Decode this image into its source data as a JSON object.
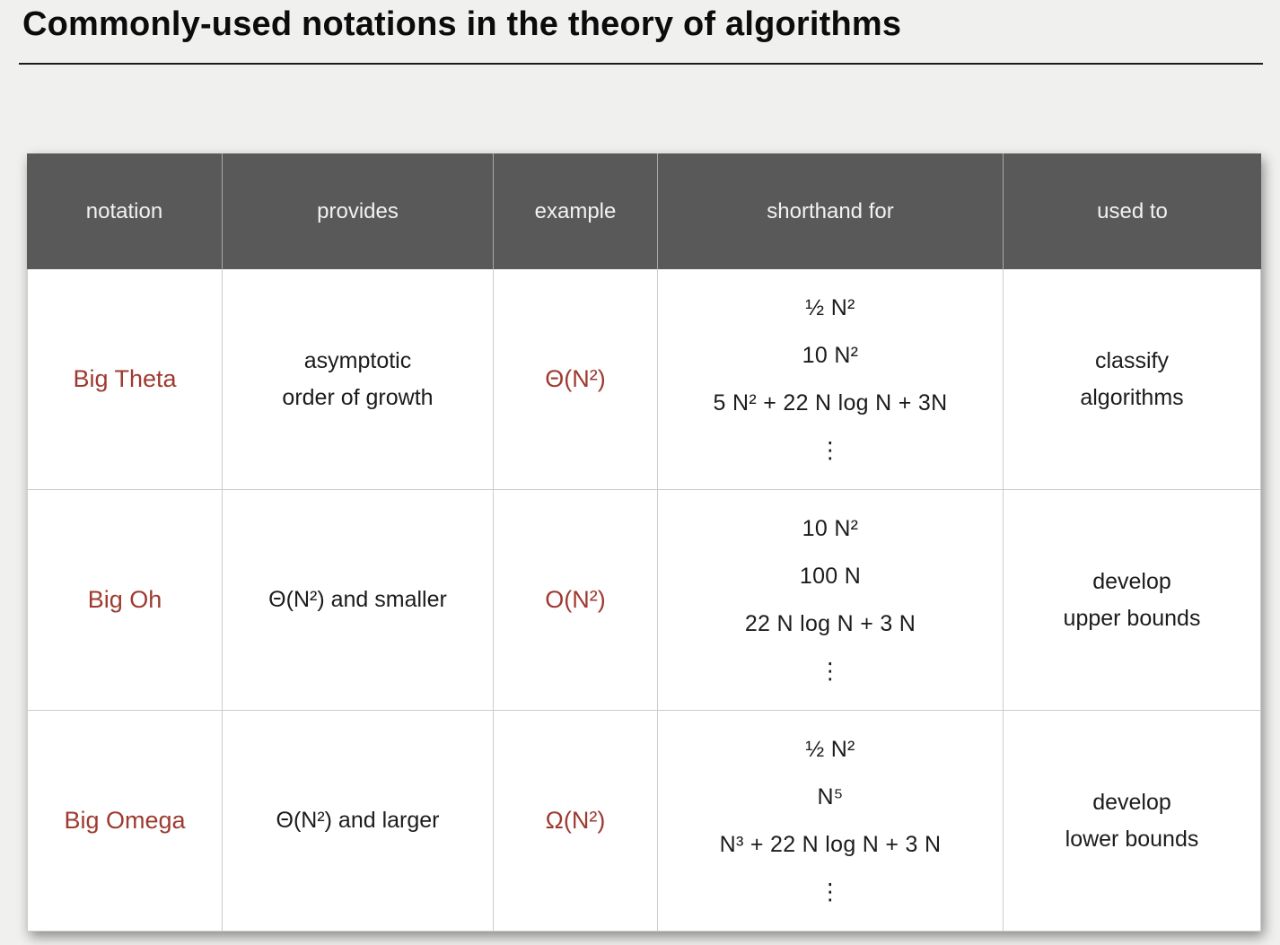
{
  "page": {
    "title": "Commonly-used notations in the theory of algorithms"
  },
  "colors": {
    "background": "#f0f0ee",
    "header_bg": "#595959",
    "header_text": "#f2f2f2",
    "accent_red": "#9e3a30",
    "body_text": "#1c1c1c",
    "cell_border": "#cccccc"
  },
  "table": {
    "headers": [
      "notation",
      "provides",
      "example",
      "shorthand for",
      "used to"
    ],
    "rows": [
      {
        "notation": "Big Theta",
        "provides": [
          "asymptotic",
          "order of growth"
        ],
        "example": "Θ(N²)",
        "shorthand": [
          "½ N²",
          "10 N²",
          "5 N² + 22 N log N + 3N",
          "⋮"
        ],
        "used_to": [
          "classify",
          "algorithms"
        ]
      },
      {
        "notation": "Big Oh",
        "provides": [
          "Θ(N²) and smaller"
        ],
        "example": "O(N²)",
        "shorthand": [
          "10 N²",
          "100 N",
          "22 N log N + 3 N",
          "⋮"
        ],
        "used_to": [
          "develop",
          "upper bounds"
        ]
      },
      {
        "notation": "Big Omega",
        "provides": [
          "Θ(N²) and larger"
        ],
        "example": "Ω(N²)",
        "shorthand": [
          "½ N²",
          "N⁵",
          "N³ + 22 N log N + 3 N",
          "⋮"
        ],
        "used_to": [
          "develop",
          "lower bounds"
        ]
      }
    ]
  }
}
